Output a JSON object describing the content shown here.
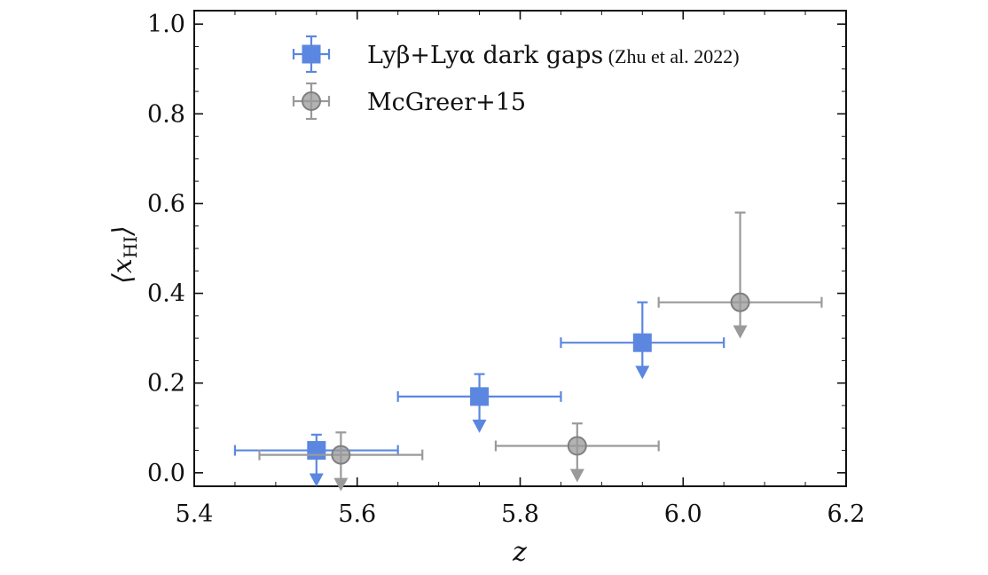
{
  "chart_data": {
    "type": "scatter",
    "xlabel": "z",
    "ylabel": "⟨x",
    "ylabel_sub": "HI",
    "ylabel_close": "⟩",
    "xlim": [
      5.4,
      6.2
    ],
    "ylim": [
      -0.03,
      1.03
    ],
    "xticks": [
      "5.4",
      "5.6",
      "5.8",
      "6.0",
      "6.2"
    ],
    "yticks": [
      "0.0",
      "0.2",
      "0.4",
      "0.6",
      "0.8",
      "1.0"
    ],
    "grid": false,
    "legend_position": "top-center",
    "series": [
      {
        "name": "Lyβ+Lyα dark gaps",
        "name_note": "(Zhu et al. 2022)",
        "marker": "square",
        "color": "#5b87e0",
        "upper_limits": true,
        "points": [
          {
            "x": 5.55,
            "y": 0.05,
            "xerr": [
              0.1,
              0.1
            ],
            "yerr_up": 0.035
          },
          {
            "x": 5.75,
            "y": 0.17,
            "xerr": [
              0.1,
              0.1
            ],
            "yerr_up": 0.05
          },
          {
            "x": 5.95,
            "y": 0.29,
            "xerr": [
              0.1,
              0.1
            ],
            "yerr_up": 0.09
          }
        ]
      },
      {
        "name": "McGreer+15",
        "marker": "circle",
        "color": "#9a9a9a",
        "upper_limits": true,
        "points": [
          {
            "x": 5.58,
            "y": 0.04,
            "xerr": [
              0.1,
              0.1
            ],
            "yerr_up": 0.05
          },
          {
            "x": 5.87,
            "y": 0.06,
            "xerr": [
              0.1,
              0.1
            ],
            "yerr_up": 0.05
          },
          {
            "x": 6.07,
            "y": 0.38,
            "xerr": [
              0.1,
              0.1
            ],
            "yerr_up": 0.2
          }
        ]
      }
    ]
  }
}
